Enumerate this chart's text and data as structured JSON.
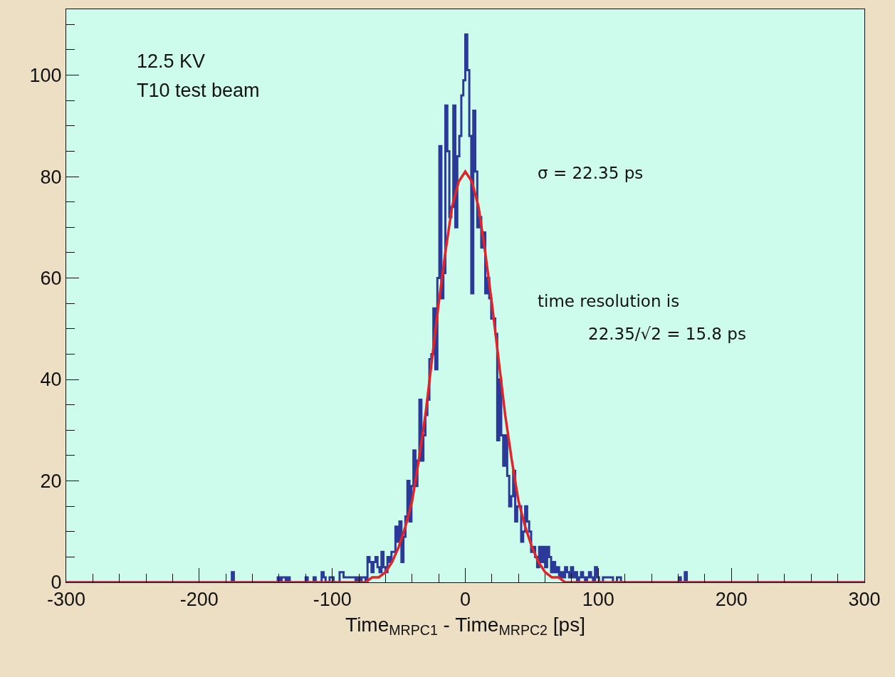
{
  "chart_data": {
    "type": "histogram",
    "xlabel": "Time$_{MRPC1}$ - Time$_{MRPC2}$ [ps]",
    "xlim": [
      -300,
      300
    ],
    "ylim": [
      0,
      113
    ],
    "xticks": [
      -300,
      {
        "value": -280,
        "label": null
      },
      {
        "value": -260,
        "label": null
      },
      {
        "value": -240,
        "label": null
      },
      {
        "value": -220,
        "label": null
      },
      -200,
      {
        "value": -180,
        "label": null
      },
      {
        "value": -160,
        "label": null
      },
      {
        "value": -140,
        "label": null
      },
      {
        "value": -120,
        "label": null
      },
      -100,
      {
        "value": -80,
        "label": null
      },
      {
        "value": -60,
        "label": null
      },
      {
        "value": -40,
        "label": null
      },
      {
        "value": -20,
        "label": null
      },
      0,
      {
        "value": 20,
        "label": null
      },
      {
        "value": 40,
        "label": null
      },
      {
        "value": 60,
        "label": null
      },
      {
        "value": 80,
        "label": null
      },
      100,
      {
        "value": 120,
        "label": null
      },
      {
        "value": 140,
        "label": null
      },
      {
        "value": 160,
        "label": null
      },
      {
        "value": 180,
        "label": null
      },
      200,
      {
        "value": 220,
        "label": null
      },
      {
        "value": 240,
        "label": null
      },
      {
        "value": 260,
        "label": null
      },
      {
        "value": 280,
        "label": null
      },
      300
    ],
    "yticks": [
      0,
      {
        "value": 5,
        "label": null
      },
      {
        "value": 10,
        "label": null
      },
      {
        "value": 15,
        "label": null
      },
      20,
      {
        "value": 25,
        "label": null
      },
      {
        "value": 30,
        "label": null
      },
      {
        "value": 35,
        "label": null
      },
      40,
      {
        "value": 45,
        "label": null
      },
      {
        "value": 50,
        "label": null
      },
      {
        "value": 55,
        "label": null
      },
      60,
      {
        "value": 65,
        "label": null
      },
      {
        "value": 70,
        "label": null
      },
      {
        "value": 75,
        "label": null
      },
      80,
      {
        "value": 85,
        "label": null
      },
      {
        "value": 90,
        "label": null
      },
      {
        "value": 95,
        "label": null
      },
      100,
      {
        "value": 105,
        "label": null
      },
      {
        "value": 110,
        "label": null
      }
    ],
    "grid": false,
    "legend": false,
    "annotations": [
      "12.5 KV",
      "T10 test beam",
      "σ = 22.35 ps",
      "time resolution is",
      "22.35/√2 = 15.8 ps"
    ],
    "series": [
      {
        "type": "histogram",
        "color": "#2b3a98",
        "bins": [
          -300,
          -180,
          -178.5,
          -177,
          -175.5,
          -174,
          -172.5,
          -171,
          -169.5,
          -168,
          -166.5,
          -165,
          -163.5,
          -162,
          -160.5,
          -159,
          -157.5,
          -156,
          -154.5,
          -153,
          -151.5,
          -150,
          -148.5,
          -147,
          -145.5,
          -144,
          -142.5,
          -141,
          -139.5,
          -138,
          -136.5,
          -135,
          -133.5,
          -132,
          -130.5,
          -129,
          -127.5,
          -126,
          -124.5,
          -123,
          -121.5,
          -120,
          -118.5,
          -117,
          -115.5,
          -114,
          -112.5,
          -111,
          -109.5,
          -108,
          -106.5,
          -105,
          -103.5,
          -102,
          -100.5,
          -99,
          -97.5,
          -96,
          -94.5,
          -93,
          -91.5,
          -90,
          -88.5,
          -87,
          -85.5,
          -84,
          -82.5,
          -81,
          -79.5,
          -78,
          -76.5,
          -75,
          -73.5,
          -72,
          -70.5,
          -69,
          -67.5,
          -66,
          -64.5,
          -63,
          -61.5,
          -60,
          -58.5,
          -57,
          -55.5,
          -54,
          -52.5,
          -51,
          -49.5,
          -48,
          -46.5,
          -45,
          -43.5,
          -42,
          -40.5,
          -39,
          -37.5,
          -36,
          -34.5,
          -33,
          -31.5,
          -30,
          -28.5,
          -27,
          -25.5,
          -24,
          -22.5,
          -21,
          -19.5,
          -18,
          -16.5,
          -15,
          -13.5,
          -12,
          -10.5,
          -9,
          -7.5,
          -6,
          -4.5,
          -3,
          -1.5,
          0,
          1.5,
          3,
          4.5,
          6,
          7.5,
          9,
          10.5,
          12,
          13.5,
          15,
          16.5,
          18,
          19.5,
          21,
          22.5,
          24,
          25.5,
          27,
          28.5,
          30,
          31.5,
          33,
          34.5,
          36,
          37.5,
          39,
          40.5,
          42,
          43.5,
          45,
          46.5,
          48,
          49.5,
          51,
          52.5,
          54,
          55.5,
          57,
          58.5,
          60,
          61.5,
          63,
          64.5,
          66,
          67.5,
          69,
          70.5,
          72,
          73.5,
          75,
          76.5,
          78,
          79.5,
          81,
          82.5,
          84,
          85.5,
          87,
          88.5,
          90,
          91.5,
          93,
          94.5,
          96,
          97.5,
          99,
          100.5,
          102,
          103.5,
          105,
          106.5,
          108,
          109.5,
          111,
          112.5,
          114,
          115.5,
          117,
          118.5,
          120,
          121.5,
          123,
          124.5,
          126,
          127.5,
          129,
          130.5,
          132,
          133.5,
          135,
          136.5,
          138,
          139.5,
          141,
          142.5,
          144,
          145.5,
          147,
          148.5,
          150,
          151.5,
          153,
          154.5,
          156,
          157.5,
          159,
          160.5,
          162,
          163.5,
          165,
          166.5,
          168,
          169.5,
          300
        ],
        "values": [
          0,
          0,
          0,
          0,
          2,
          0,
          0,
          0,
          0,
          0,
          0,
          0,
          0,
          0,
          0,
          0,
          0,
          0,
          0,
          0,
          0,
          0,
          0,
          0,
          0,
          0,
          0,
          1,
          0,
          1,
          1,
          0,
          1,
          0,
          0,
          0,
          0,
          0,
          0,
          0,
          0,
          1,
          0,
          0,
          0,
          1,
          0,
          0,
          0,
          2,
          1,
          0,
          0,
          1,
          1,
          0,
          0,
          0,
          2,
          2,
          1,
          1,
          1,
          1,
          1,
          1,
          0,
          1,
          0,
          1,
          1,
          0,
          5,
          4,
          2,
          4,
          5,
          3,
          2,
          6,
          3,
          2,
          5,
          4,
          6,
          6,
          11,
          8,
          12,
          4,
          9,
          13,
          20,
          12,
          19,
          26,
          19,
          24,
          36,
          24,
          29,
          33,
          36,
          44,
          45,
          54,
          42,
          60,
          86,
          56,
          61,
          94,
          85,
          72,
          74,
          94,
          70,
          84,
          88,
          96,
          99,
          108,
          101,
          88,
          57,
          93,
          81,
          70,
          72,
          66,
          69,
          57,
          60,
          56,
          52,
          52,
          49,
          28,
          40,
          29,
          23,
          29,
          21,
          15,
          17,
          22,
          12,
          15,
          15,
          8,
          10,
          15,
          12,
          10,
          6,
          7,
          5,
          3,
          7,
          4,
          7,
          3,
          7,
          5,
          2,
          4,
          2,
          3,
          1,
          2,
          1,
          3,
          2,
          1,
          3,
          1,
          2,
          0,
          1,
          2,
          1,
          0,
          1,
          2,
          1,
          0,
          3,
          1,
          0,
          0,
          1,
          1,
          1,
          1,
          1,
          0,
          0,
          1,
          1,
          0,
          0,
          0,
          0,
          0,
          0,
          0,
          0,
          0,
          0,
          0,
          0,
          0,
          0,
          0,
          0,
          0,
          0,
          0,
          0,
          0,
          0,
          0,
          0,
          0,
          0,
          0,
          0,
          0,
          1,
          0,
          0,
          2,
          0,
          0,
          0
        ]
      },
      {
        "type": "line",
        "color": "#e0252a",
        "x": [
          -300,
          -80,
          -75,
          -70,
          -65,
          -60,
          -55,
          -50,
          -45,
          -40,
          -35,
          -30,
          -25,
          -20,
          -15,
          -10,
          -5,
          0,
          5,
          10,
          15,
          20,
          25,
          30,
          35,
          40,
          45,
          50,
          55,
          60,
          65,
          70,
          75,
          80,
          300
        ],
        "values": [
          0,
          0,
          0,
          1,
          1,
          2,
          4,
          7,
          11,
          16,
          24,
          33,
          44,
          55,
          65,
          74,
          79,
          81,
          79,
          74,
          65,
          55,
          44,
          33,
          24,
          16,
          11,
          7,
          4,
          2,
          1,
          1,
          0,
          0,
          0
        ]
      }
    ]
  }
}
